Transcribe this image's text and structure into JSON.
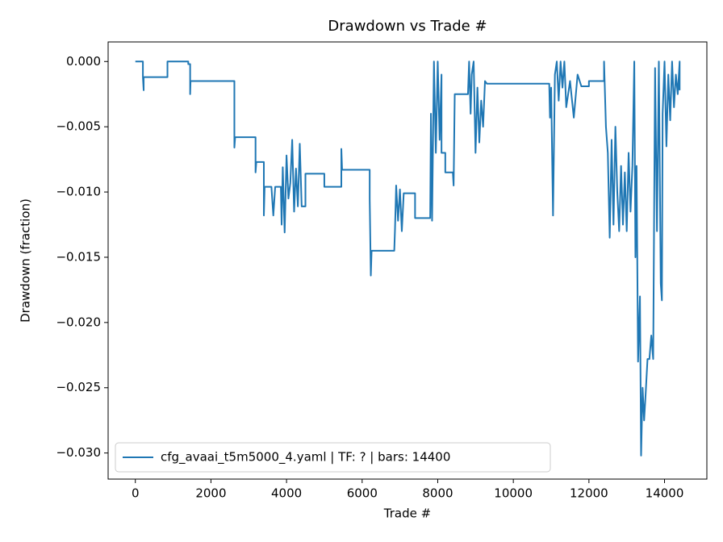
{
  "chart_data": {
    "type": "line",
    "title": "Drawdown vs Trade #",
    "xlabel": "Trade #",
    "ylabel": "Drawdown (fraction)",
    "xlim": [
      -720,
      15120
    ],
    "ylim": [
      -0.032,
      0.0015
    ],
    "xticks": [
      0,
      2000,
      4000,
      6000,
      8000,
      10000,
      12000,
      14000
    ],
    "yticks": [
      {
        "value": 0,
        "label": "0.000"
      },
      {
        "value": -0.005,
        "label": "−0.005"
      },
      {
        "value": -0.01,
        "label": "−0.010"
      },
      {
        "value": -0.015,
        "label": "−0.015"
      },
      {
        "value": -0.02,
        "label": "−0.020"
      },
      {
        "value": -0.025,
        "label": "−0.025"
      },
      {
        "value": -0.03,
        "label": "−0.030"
      }
    ],
    "grid": false,
    "legend": "lower left",
    "x": [
      0,
      200,
      200,
      220,
      220,
      850,
      850,
      1400,
      1400,
      1450,
      1450,
      1460,
      2620,
      2620,
      2640,
      3180,
      3180,
      3200,
      3400,
      3400,
      3420,
      3600,
      3650,
      3700,
      3850,
      3870,
      3900,
      3950,
      4000,
      4050,
      4100,
      4150,
      4200,
      4250,
      4300,
      4350,
      4400,
      4500,
      4500,
      5000,
      5000,
      5450,
      5450,
      5470,
      6200,
      6200,
      6230,
      6250,
      6850,
      6870,
      6900,
      6950,
      7000,
      7050,
      7100,
      7400,
      7400,
      7800,
      7820,
      7850,
      7900,
      7950,
      8000,
      8050,
      8100,
      8100,
      8200,
      8200,
      8400,
      8420,
      8450,
      8800,
      8830,
      8870,
      8900,
      8950,
      9000,
      9050,
      9100,
      9150,
      9200,
      9250,
      9300,
      10950,
      10970,
      11000,
      11050,
      11100,
      11150,
      11200,
      11250,
      11300,
      11350,
      11400,
      11500,
      11600,
      11700,
      11800,
      12000,
      12000,
      12400,
      12400,
      12450,
      12500,
      12550,
      12600,
      12650,
      12700,
      12750,
      12800,
      12850,
      12900,
      12950,
      13000,
      13050,
      13100,
      13150,
      13200,
      13230,
      13260,
      13300,
      13350,
      13380,
      13420,
      13460,
      13500,
      13550,
      13600,
      13650,
      13700,
      13750,
      13800,
      13850,
      13900,
      13930,
      13950,
      14000,
      14050,
      14100,
      14150,
      14200,
      14250,
      14300,
      14350,
      14400,
      14400
    ],
    "series": [
      {
        "name": "cfg_avaai_t5m5000_4.yaml | TF: ? | bars: 14400",
        "color": "#1f77b4",
        "values": [
          0,
          0,
          -0.0012,
          -0.0022,
          -0.0012,
          -0.0012,
          0,
          0,
          -0.0002,
          -0.0002,
          -0.0025,
          -0.0015,
          -0.0015,
          -0.0066,
          -0.0058,
          -0.0058,
          -0.0085,
          -0.0077,
          -0.0077,
          -0.0118,
          -0.0096,
          -0.0096,
          -0.0118,
          -0.0096,
          -0.0096,
          -0.0125,
          -0.0081,
          -0.0131,
          -0.0072,
          -0.0105,
          -0.0093,
          -0.006,
          -0.0115,
          -0.0082,
          -0.0111,
          -0.0063,
          -0.0111,
          -0.0111,
          -0.0086,
          -0.0086,
          -0.0096,
          -0.0096,
          -0.0067,
          -0.0083,
          -0.0083,
          -0.0105,
          -0.0164,
          -0.0145,
          -0.0145,
          -0.0128,
          -0.0095,
          -0.0122,
          -0.0098,
          -0.013,
          -0.0101,
          -0.0101,
          -0.012,
          -0.012,
          -0.004,
          -0.0122,
          0,
          -0.007,
          0,
          -0.006,
          -0.001,
          -0.007,
          -0.007,
          -0.0085,
          -0.0085,
          -0.0095,
          -0.0025,
          -0.0025,
          0,
          -0.004,
          -0.001,
          0,
          -0.007,
          -0.002,
          -0.0062,
          -0.003,
          -0.005,
          -0.0015,
          -0.0017,
          -0.0017,
          -0.0043,
          -0.002,
          -0.0118,
          -0.001,
          0,
          -0.003,
          0,
          -0.002,
          0,
          -0.0035,
          -0.0015,
          -0.0043,
          -0.001,
          -0.0019,
          -0.0019,
          -0.0015,
          -0.0015,
          0,
          -0.005,
          -0.007,
          -0.0135,
          -0.006,
          -0.0125,
          -0.005,
          -0.01,
          -0.013,
          -0.008,
          -0.0125,
          -0.0085,
          -0.013,
          -0.007,
          -0.0115,
          -0.008,
          0,
          -0.015,
          -0.008,
          -0.023,
          -0.018,
          -0.0302,
          -0.025,
          -0.0275,
          -0.0255,
          -0.0228,
          -0.0228,
          -0.021,
          -0.0228,
          -0.0005,
          -0.013,
          0,
          -0.017,
          -0.0183,
          -0.004,
          0,
          -0.0065,
          -0.001,
          -0.0045,
          0,
          -0.0035,
          -0.001,
          -0.0025,
          0,
          -0.0022
        ]
      }
    ]
  }
}
